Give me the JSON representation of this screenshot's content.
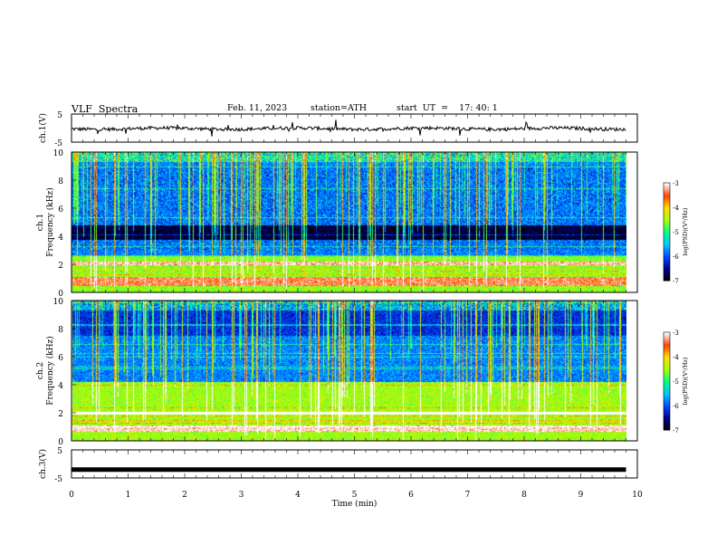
{
  "header": {
    "title": "VLF  Spectra",
    "date": "Feb. 11, 2023",
    "station": "station=ATH",
    "start": "start  UT  =    17: 40: 1"
  },
  "chart_data": [
    {
      "type": "line",
      "ylabel": "ch.1(V)",
      "ylim": [
        -5,
        5
      ],
      "y_ticks": [
        "5",
        "-5"
      ],
      "series": [
        {
          "description_level": -0.2,
          "noise_amplitude": 0.6
        }
      ]
    },
    {
      "type": "heatmap",
      "ylabel_line1": "ch.1",
      "ylabel_line2": "Frequency (kHz)",
      "ylim": [
        0,
        10
      ],
      "y_ticks": [
        "0",
        "2",
        "4",
        "6",
        "8",
        "10"
      ],
      "colorbar": {
        "label": "log(PSD)(V²/Hz)",
        "range": [
          -7,
          -3
        ],
        "ticks": [
          "-3",
          "-4",
          "-5",
          "-6",
          "-7"
        ]
      }
    },
    {
      "type": "heatmap",
      "ylabel_line1": "ch.2",
      "ylabel_line2": "Frequency (kHz)",
      "ylim": [
        0,
        10
      ],
      "y_ticks": [
        "0",
        "2",
        "4",
        "6",
        "8",
        "10"
      ],
      "colorbar": {
        "label": "log(PSD)(V²/Hz)",
        "range": [
          -7,
          -3
        ],
        "ticks": [
          "-3",
          "-4",
          "-5",
          "-6",
          "-7"
        ]
      }
    },
    {
      "type": "line",
      "ylabel": "ch.3(V)",
      "ylim": [
        -5,
        5
      ],
      "y_ticks": [
        "5",
        "-5"
      ],
      "series": [
        {
          "description_level": -2.0,
          "noise_amplitude": 0
        }
      ]
    }
  ],
  "x_axis": {
    "xlabel": "Time  (min)",
    "xlim": [
      0,
      10
    ],
    "ticks": [
      "0",
      "1",
      "2",
      "3",
      "4",
      "5",
      "6",
      "7",
      "8",
      "9",
      "10"
    ],
    "data_end": 9.8
  },
  "colors": {
    "scale": [
      "#000000",
      "#00008b",
      "#0044ff",
      "#00c8ff",
      "#00ff88",
      "#aaff00",
      "#ffdd00",
      "#ff4400",
      "#ffffff"
    ],
    "trace": "#000000"
  }
}
